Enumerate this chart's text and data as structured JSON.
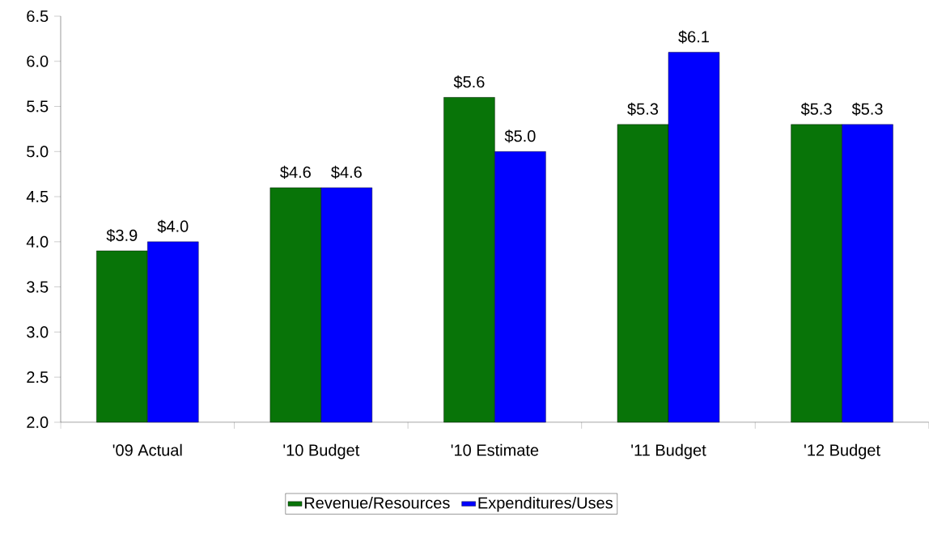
{
  "chart_data": {
    "type": "bar",
    "categories": [
      "'09 Actual",
      "'10 Budget",
      "'10 Estimate",
      "'11 Budget",
      "'12 Budget"
    ],
    "series": [
      {
        "name": "Revenue/Resources",
        "color": "#087408",
        "values": [
          3.9,
          4.6,
          5.6,
          5.3,
          5.3
        ],
        "value_labels": [
          "$3.9",
          "$4.6",
          "$5.6",
          "$5.3",
          "$5.3"
        ]
      },
      {
        "name": "Expenditures/Uses",
        "color": "#0000ff",
        "values": [
          4.0,
          4.6,
          5.0,
          6.1,
          5.3
        ],
        "value_labels": [
          "$4.0",
          "$4.6",
          "$5.0",
          "$6.1",
          "$5.3"
        ]
      }
    ],
    "ylim": [
      2.0,
      6.5
    ],
    "yticks": [
      {
        "value": 2.0,
        "label": "2.0"
      },
      {
        "value": 2.5,
        "label": "2.5"
      },
      {
        "value": 3.0,
        "label": "3.0"
      },
      {
        "value": 3.5,
        "label": "3.5"
      },
      {
        "value": 4.0,
        "label": "4.0"
      },
      {
        "value": 4.5,
        "label": "4.5"
      },
      {
        "value": 5.0,
        "label": "5.0"
      },
      {
        "value": 5.5,
        "label": "5.5"
      },
      {
        "value": 6.0,
        "label": "6.0"
      },
      {
        "value": 6.5,
        "label": "6.5"
      }
    ],
    "grid": false,
    "legend": "bottom"
  }
}
